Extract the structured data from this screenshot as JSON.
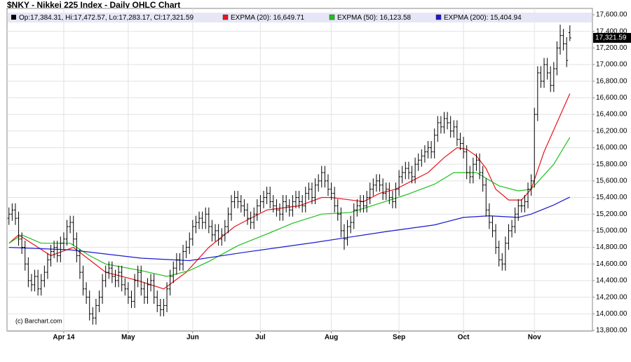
{
  "chart_data": {
    "type": "ohlc",
    "title": "$NKY - Nikkei 225 Index - Daily OHLC Chart",
    "ohlc_legend": "Op:17,384.31, Hi:17,472.57, Lo:17,283.17, Cl:17,321.59",
    "last_label": "17,321.59",
    "credit": "(c) Barchart.com",
    "color": "#000000",
    "xlim": [
      -0.6,
      181
    ],
    "xticks": [
      {
        "value": 17,
        "label": "Apr 14"
      },
      {
        "value": 37,
        "label": "May"
      },
      {
        "value": 57,
        "label": "Jun"
      },
      {
        "value": 78,
        "label": "Jul"
      },
      {
        "value": 100,
        "label": "Aug"
      },
      {
        "value": 121,
        "label": "Sep"
      },
      {
        "value": 141,
        "label": "Oct"
      },
      {
        "value": 163,
        "label": "Nov"
      }
    ],
    "ylim": [
      13800,
      17600
    ],
    "yticks": [
      {
        "value": 13800,
        "label": "13,800.00"
      },
      {
        "value": 14000,
        "label": "14,000.00"
      },
      {
        "value": 14200,
        "label": "14,200.00"
      },
      {
        "value": 14400,
        "label": "14,400.00"
      },
      {
        "value": 14600,
        "label": "14,600.00"
      },
      {
        "value": 14800,
        "label": "14,800.00"
      },
      {
        "value": 15000,
        "label": "15,000.00"
      },
      {
        "value": 15200,
        "label": "15,200.00"
      },
      {
        "value": 15400,
        "label": "15,400.00"
      },
      {
        "value": 15600,
        "label": "15,600.00"
      },
      {
        "value": 15800,
        "label": "15,800.00"
      },
      {
        "value": 16000,
        "label": "16,000.00"
      },
      {
        "value": 16200,
        "label": "16,200.00"
      },
      {
        "value": 16400,
        "label": "16,400.00"
      },
      {
        "value": 16600,
        "label": "16,600.00"
      },
      {
        "value": 16800,
        "label": "16,800.00"
      },
      {
        "value": 17000,
        "label": "17,000.00"
      },
      {
        "value": 17200,
        "label": "17,200.00"
      },
      {
        "value": 17400,
        "label": "17,400.00"
      },
      {
        "value": 17600,
        "label": "17,600.00"
      }
    ],
    "grid": true,
    "ohlc": [
      [
        15150,
        15280,
        15070,
        15200
      ],
      [
        15200,
        15330,
        15120,
        15250
      ],
      [
        15250,
        15330,
        15070,
        15150
      ],
      [
        15150,
        15230,
        14820,
        14900
      ],
      [
        14900,
        14980,
        14720,
        14800
      ],
      [
        14800,
        14880,
        14520,
        14600
      ],
      [
        14600,
        14680,
        14320,
        14400
      ],
      [
        14400,
        14480,
        14270,
        14350
      ],
      [
        14350,
        14530,
        14270,
        14450
      ],
      [
        14450,
        14530,
        14220,
        14300
      ],
      [
        14300,
        14480,
        14220,
        14400
      ],
      [
        14400,
        14580,
        14320,
        14500
      ],
      [
        14500,
        14730,
        14420,
        14650
      ],
      [
        14650,
        14830,
        14570,
        14750
      ],
      [
        14750,
        14880,
        14670,
        14800
      ],
      [
        14800,
        14880,
        14620,
        14700
      ],
      [
        14700,
        14930,
        14620,
        14850
      ],
      [
        14850,
        14980,
        14770,
        14900
      ],
      [
        14900,
        15130,
        14820,
        15050
      ],
      [
        15050,
        15180,
        14970,
        15100
      ],
      [
        15100,
        15180,
        14820,
        14900
      ],
      [
        14900,
        14980,
        14620,
        14700
      ],
      [
        14700,
        14780,
        14420,
        14500
      ],
      [
        14500,
        14580,
        14220,
        14300
      ],
      [
        14300,
        14380,
        14120,
        14200
      ],
      [
        14200,
        14280,
        13920,
        14000
      ],
      [
        14000,
        14080,
        13870,
        13950
      ],
      [
        13950,
        14180,
        13870,
        14100
      ],
      [
        14100,
        14280,
        14020,
        14200
      ],
      [
        14200,
        14480,
        14120,
        14400
      ],
      [
        14400,
        14580,
        14320,
        14500
      ],
      [
        14500,
        14630,
        14420,
        14550
      ],
      [
        14550,
        14630,
        14370,
        14450
      ],
      [
        14450,
        14530,
        14320,
        14400
      ],
      [
        14400,
        14580,
        14320,
        14500
      ],
      [
        14500,
        14580,
        14270,
        14350
      ],
      [
        14350,
        14430,
        14220,
        14300
      ],
      [
        14300,
        14380,
        14120,
        14200
      ],
      [
        14200,
        14280,
        14070,
        14150
      ],
      [
        14150,
        14480,
        14070,
        14400
      ],
      [
        14400,
        14580,
        14320,
        14500
      ],
      [
        14500,
        14580,
        14220,
        14300
      ],
      [
        14300,
        14380,
        14120,
        14200
      ],
      [
        14200,
        14430,
        14120,
        14350
      ],
      [
        14350,
        14480,
        14270,
        14400
      ],
      [
        14400,
        14480,
        14120,
        14200
      ],
      [
        14200,
        14280,
        14020,
        14100
      ],
      [
        14100,
        14180,
        13970,
        14050
      ],
      [
        14050,
        14180,
        13970,
        14100
      ],
      [
        14100,
        14380,
        14020,
        14300
      ],
      [
        14300,
        14530,
        14220,
        14450
      ],
      [
        14450,
        14630,
        14370,
        14550
      ],
      [
        14550,
        14730,
        14470,
        14650
      ],
      [
        14650,
        14730,
        14520,
        14600
      ],
      [
        14600,
        14830,
        14520,
        14750
      ],
      [
        14750,
        14880,
        14670,
        14800
      ],
      [
        14800,
        14980,
        14720,
        14900
      ],
      [
        14900,
        15130,
        14820,
        15050
      ],
      [
        15050,
        15180,
        14970,
        15100
      ],
      [
        15100,
        15230,
        15020,
        15150
      ],
      [
        15150,
        15230,
        15020,
        15100
      ],
      [
        15100,
        15280,
        15020,
        15200
      ],
      [
        15200,
        15280,
        14970,
        15050
      ],
      [
        15050,
        15130,
        14870,
        14950
      ],
      [
        14950,
        15080,
        14870,
        15000
      ],
      [
        15000,
        15080,
        14820,
        14900
      ],
      [
        14900,
        15030,
        14820,
        14950
      ],
      [
        14950,
        15130,
        14870,
        15050
      ],
      [
        15050,
        15280,
        14970,
        15200
      ],
      [
        15200,
        15430,
        15120,
        15350
      ],
      [
        15350,
        15480,
        15270,
        15400
      ],
      [
        15400,
        15480,
        15270,
        15350
      ],
      [
        15350,
        15430,
        15220,
        15300
      ],
      [
        15300,
        15380,
        15170,
        15250
      ],
      [
        15250,
        15330,
        15070,
        15150
      ],
      [
        15150,
        15230,
        15020,
        15100
      ],
      [
        15100,
        15280,
        15020,
        15200
      ],
      [
        15200,
        15380,
        15120,
        15300
      ],
      [
        15300,
        15430,
        15220,
        15350
      ],
      [
        15350,
        15480,
        15270,
        15400
      ],
      [
        15400,
        15530,
        15320,
        15450
      ],
      [
        15450,
        15530,
        15270,
        15350
      ],
      [
        15350,
        15430,
        15220,
        15300
      ],
      [
        15300,
        15380,
        15170,
        15250
      ],
      [
        15250,
        15330,
        15120,
        15200
      ],
      [
        15200,
        15430,
        15120,
        15350
      ],
      [
        15350,
        15430,
        15220,
        15300
      ],
      [
        15300,
        15380,
        15170,
        15250
      ],
      [
        15250,
        15430,
        15170,
        15350
      ],
      [
        15350,
        15480,
        15270,
        15400
      ],
      [
        15400,
        15480,
        15270,
        15350
      ],
      [
        15350,
        15430,
        15220,
        15300
      ],
      [
        15300,
        15530,
        15220,
        15450
      ],
      [
        15450,
        15580,
        15370,
        15500
      ],
      [
        15500,
        15580,
        15320,
        15400
      ],
      [
        15400,
        15630,
        15320,
        15550
      ],
      [
        15550,
        15680,
        15470,
        15600
      ],
      [
        15600,
        15780,
        15520,
        15700
      ],
      [
        15700,
        15780,
        15520,
        15600
      ],
      [
        15600,
        15680,
        15420,
        15500
      ],
      [
        15500,
        15580,
        15370,
        15450
      ],
      [
        15450,
        15530,
        15220,
        15300
      ],
      [
        15300,
        15380,
        15120,
        15200
      ],
      [
        15200,
        15280,
        14920,
        15000
      ],
      [
        15000,
        15080,
        14770,
        14900
      ],
      [
        14900,
        15130,
        14820,
        15050
      ],
      [
        15050,
        15180,
        14970,
        15100
      ],
      [
        15100,
        15330,
        15020,
        15250
      ],
      [
        15250,
        15380,
        15170,
        15300
      ],
      [
        15300,
        15430,
        15220,
        15350
      ],
      [
        15350,
        15430,
        15220,
        15300
      ],
      [
        15300,
        15480,
        15220,
        15400
      ],
      [
        15400,
        15580,
        15320,
        15500
      ],
      [
        15500,
        15630,
        15420,
        15550
      ],
      [
        15550,
        15680,
        15470,
        15600
      ],
      [
        15600,
        15680,
        15470,
        15550
      ],
      [
        15550,
        15630,
        15370,
        15450
      ],
      [
        15450,
        15580,
        15370,
        15500
      ],
      [
        15500,
        15580,
        15320,
        15400
      ],
      [
        15400,
        15480,
        15270,
        15350
      ],
      [
        15350,
        15580,
        15270,
        15500
      ],
      [
        15500,
        15730,
        15420,
        15650
      ],
      [
        15650,
        15780,
        15570,
        15700
      ],
      [
        15700,
        15830,
        15620,
        15750
      ],
      [
        15750,
        15830,
        15620,
        15700
      ],
      [
        15700,
        15780,
        15570,
        15650
      ],
      [
        15650,
        15880,
        15570,
        15800
      ],
      [
        15800,
        15930,
        15720,
        15850
      ],
      [
        15850,
        15980,
        15770,
        15900
      ],
      [
        15900,
        16030,
        15820,
        15950
      ],
      [
        15950,
        16080,
        15870,
        16000
      ],
      [
        16000,
        16080,
        15870,
        15950
      ],
      [
        15950,
        16230,
        15870,
        16150
      ],
      [
        16150,
        16380,
        16070,
        16300
      ],
      [
        16300,
        16380,
        16170,
        16250
      ],
      [
        16250,
        16430,
        16170,
        16350
      ],
      [
        16350,
        16430,
        16220,
        16300
      ],
      [
        16300,
        16380,
        16120,
        16200
      ],
      [
        16200,
        16330,
        16120,
        16250
      ],
      [
        16250,
        16330,
        16020,
        16100
      ],
      [
        16100,
        16180,
        15970,
        16050
      ],
      [
        16050,
        16130,
        15870,
        15950
      ],
      [
        15950,
        16030,
        15620,
        15700
      ],
      [
        15700,
        15780,
        15570,
        15650
      ],
      [
        15650,
        15880,
        15570,
        15800
      ],
      [
        15800,
        15930,
        15720,
        15850
      ],
      [
        15850,
        15930,
        15620,
        15700
      ],
      [
        15700,
        15780,
        15470,
        15550
      ],
      [
        15550,
        15630,
        15170,
        15250
      ],
      [
        15250,
        15330,
        15020,
        15100
      ],
      [
        15100,
        15180,
        14920,
        15000
      ],
      [
        15000,
        15080,
        14720,
        14800
      ],
      [
        14800,
        14880,
        14570,
        14650
      ],
      [
        14650,
        14730,
        14520,
        14600
      ],
      [
        14600,
        14930,
        14520,
        14850
      ],
      [
        14850,
        15080,
        14770,
        15000
      ],
      [
        15000,
        15130,
        14920,
        15050
      ],
      [
        15050,
        15280,
        14970,
        15200
      ],
      [
        15200,
        15380,
        15120,
        15300
      ],
      [
        15300,
        15380,
        15220,
        15300
      ],
      [
        15300,
        15430,
        15220,
        15350
      ],
      [
        15350,
        15580,
        15270,
        15500
      ],
      [
        15500,
        15680,
        15420,
        15600
      ],
      [
        15600,
        16480,
        15520,
        16400
      ],
      [
        16400,
        16980,
        16320,
        16900
      ],
      [
        16900,
        16980,
        16720,
        16800
      ],
      [
        16800,
        17080,
        16720,
        17000
      ],
      [
        17000,
        17080,
        16820,
        16900
      ],
      [
        16900,
        16980,
        16670,
        16750
      ],
      [
        16750,
        17030,
        16670,
        16950
      ],
      [
        16950,
        17280,
        16870,
        17200
      ],
      [
        17200,
        17480,
        17120,
        17350
      ],
      [
        17350,
        17430,
        17170,
        17250
      ],
      [
        17250,
        17330,
        16970,
        17050
      ],
      [
        17384.31,
        17472.57,
        17283.17,
        17321.59
      ]
    ],
    "lines": [
      {
        "name": "EXPMA (20): 16,649.71",
        "color": "#e8141c",
        "x": [
          0,
          3,
          13,
          20,
          30,
          40,
          48,
          55,
          62,
          70,
          75,
          80,
          90,
          97,
          100,
          110,
          115,
          120,
          125,
          130,
          135,
          139,
          142,
          145,
          148,
          151,
          155,
          159,
          162,
          166,
          170,
          174
        ],
        "values": [
          14850,
          14950,
          14700,
          14800,
          14500,
          14400,
          14300,
          14500,
          14800,
          15050,
          15150,
          15250,
          15300,
          15400,
          15400,
          15350,
          15450,
          15500,
          15600,
          15700,
          15880,
          16000,
          15980,
          15900,
          15750,
          15500,
          15370,
          15370,
          15500,
          15950,
          16300,
          16649.71
        ]
      },
      {
        "name": "EXPMA (50): 16,123.58",
        "color": "#1ec01e",
        "x": [
          0,
          4,
          10,
          19,
          25,
          30,
          41,
          49,
          56,
          62,
          71,
          80,
          88,
          97,
          106,
          115,
          123,
          132,
          138,
          145,
          152,
          158,
          162,
          169,
          174
        ],
        "values": [
          14850,
          14950,
          14850,
          14850,
          14700,
          14600,
          14520,
          14450,
          14520,
          14630,
          14820,
          14960,
          15090,
          15200,
          15220,
          15330,
          15430,
          15560,
          15700,
          15700,
          15540,
          15480,
          15500,
          15800,
          16123.58
        ]
      },
      {
        "name": "EXPMA (200): 15,404.94",
        "color": "#1a1ad0",
        "x": [
          0,
          19,
          41,
          56,
          73,
          95,
          117,
          132,
          141,
          149,
          158,
          162,
          169,
          174
        ],
        "values": [
          14800,
          14770,
          14670,
          14640,
          14740,
          14860,
          14990,
          15070,
          15160,
          15180,
          15160,
          15200,
          15310,
          15404.94
        ]
      }
    ]
  }
}
